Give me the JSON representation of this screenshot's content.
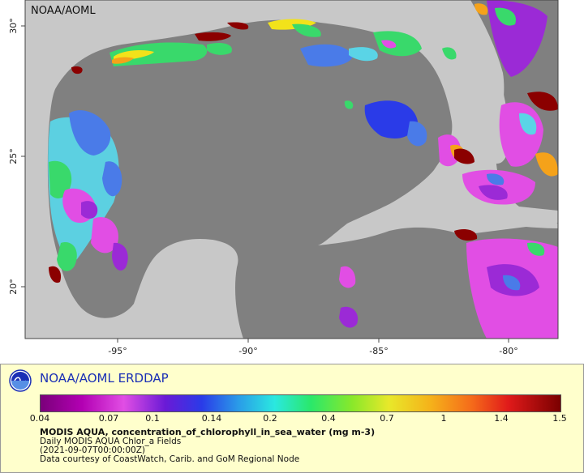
{
  "map": {
    "watermark": "NOAA/AOML",
    "lon_ticks": [
      "-95°",
      "-90°",
      "-85°",
      "-80°"
    ],
    "lat_ticks": [
      "30°",
      "25°",
      "20°"
    ]
  },
  "legend": {
    "org_name": "NOAA/AOML ERDDAP",
    "logo_icon": "noaa-logo-icon",
    "colorbar_ticks": [
      "0.04",
      "0.07",
      "0.1",
      "0.14",
      "0.2",
      "0.4",
      "0.7",
      "1",
      "1.4",
      "1.5"
    ],
    "title": "MODIS AQUA, concentration_of_chlorophyll_in_sea_water (mg m-3)",
    "line1": "Daily MODIS AQUA Chlor_a Fields",
    "line2": "(2021-09-07T00:00:00Z)",
    "line3": "Data courtesy of CoastWatch, Carib. and GoM Regional Node"
  },
  "colors": {
    "land": "#c8c8c8",
    "no_data_water": "#808080",
    "colorbar_low": "#7a007a",
    "colorbar_high": "#7a0000"
  }
}
